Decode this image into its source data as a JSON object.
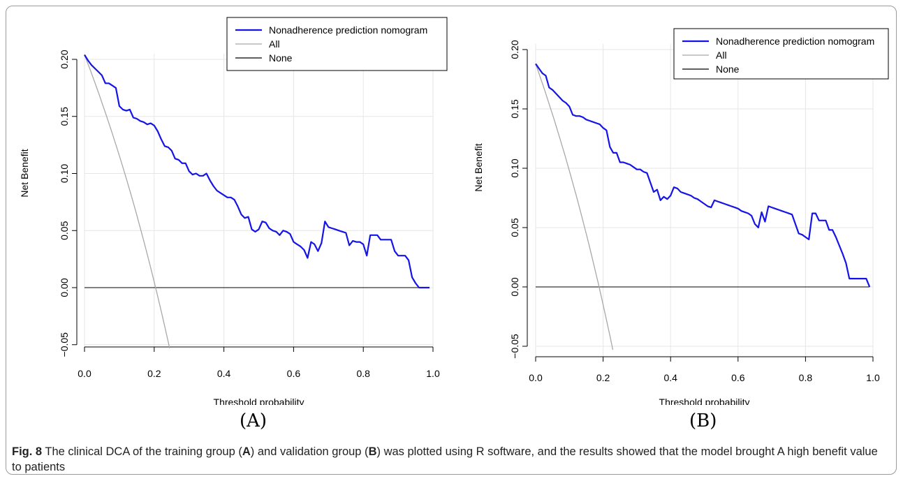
{
  "panel_labels": [
    "(A)",
    "(B)"
  ],
  "caption": {
    "label": "Fig. 8",
    "parts": [
      {
        "t": " The clinical DCA of the training group (",
        "b": false
      },
      {
        "t": "A",
        "b": true
      },
      {
        "t": ") and validation group (",
        "b": false
      },
      {
        "t": "B",
        "b": true
      },
      {
        "t": ") was plotted using R software, and the results showed that the model brought A high benefit value to patients",
        "b": false
      }
    ]
  },
  "colors": {
    "model": "#1414e6",
    "all": "#a8a8a8",
    "none": "#000000",
    "grid": "#e6e6e6"
  },
  "chart_data": [
    {
      "type": "line",
      "xlabel": "Threshold probability",
      "ylabel": "Net Benefit",
      "xlim": [
        0,
        1
      ],
      "ylim": [
        -0.05,
        0.2
      ],
      "xticks": [
        "0.0",
        "0.2",
        "0.4",
        "0.6",
        "0.8",
        "1.0"
      ],
      "yticks": [
        "−0.05",
        "0.00",
        "0.05",
        "0.10",
        "0.15",
        "0.20"
      ],
      "grid": true,
      "legend_position": "top-right",
      "prevalence": 0.204,
      "series": [
        {
          "name": "Nonadherence prediction nomogram",
          "color": "#1414e6",
          "x": [
            0.0,
            0.01,
            0.02,
            0.03,
            0.04,
            0.05,
            0.06,
            0.07,
            0.08,
            0.09,
            0.1,
            0.11,
            0.12,
            0.13,
            0.14,
            0.15,
            0.16,
            0.17,
            0.18,
            0.19,
            0.2,
            0.21,
            0.22,
            0.23,
            0.24,
            0.25,
            0.26,
            0.27,
            0.28,
            0.29,
            0.3,
            0.31,
            0.32,
            0.33,
            0.34,
            0.35,
            0.36,
            0.37,
            0.38,
            0.39,
            0.4,
            0.41,
            0.42,
            0.43,
            0.44,
            0.45,
            0.46,
            0.47,
            0.48,
            0.49,
            0.5,
            0.51,
            0.52,
            0.53,
            0.54,
            0.55,
            0.56,
            0.57,
            0.58,
            0.59,
            0.6,
            0.61,
            0.62,
            0.63,
            0.64,
            0.65,
            0.66,
            0.67,
            0.68,
            0.69,
            0.7,
            0.71,
            0.72,
            0.73,
            0.74,
            0.75,
            0.76,
            0.77,
            0.78,
            0.79,
            0.8,
            0.81,
            0.82,
            0.83,
            0.84,
            0.85,
            0.86,
            0.87,
            0.88,
            0.89,
            0.9,
            0.91,
            0.92,
            0.93,
            0.94,
            0.95,
            0.96,
            0.97,
            0.98,
            0.99
          ],
          "y": [
            0.204,
            0.199,
            0.195,
            0.192,
            0.189,
            0.186,
            0.179,
            0.179,
            0.177,
            0.175,
            0.159,
            0.156,
            0.155,
            0.156,
            0.149,
            0.148,
            0.146,
            0.145,
            0.143,
            0.144,
            0.142,
            0.137,
            0.13,
            0.124,
            0.123,
            0.12,
            0.113,
            0.112,
            0.109,
            0.109,
            0.102,
            0.099,
            0.1,
            0.098,
            0.098,
            0.1,
            0.094,
            0.089,
            0.085,
            0.083,
            0.081,
            0.079,
            0.079,
            0.077,
            0.071,
            0.064,
            0.061,
            0.062,
            0.051,
            0.049,
            0.051,
            0.058,
            0.057,
            0.052,
            0.05,
            0.049,
            0.046,
            0.05,
            0.049,
            0.047,
            0.04,
            0.038,
            0.036,
            0.033,
            0.026,
            0.04,
            0.038,
            0.032,
            0.039,
            0.058,
            0.053,
            0.052,
            0.051,
            0.05,
            0.049,
            0.048,
            0.037,
            0.041,
            0.04,
            0.04,
            0.038,
            0.028,
            0.046,
            0.046,
            0.046,
            0.042,
            0.042,
            0.042,
            0.042,
            0.032,
            0.028,
            0.028,
            0.028,
            0.024,
            0.009,
            0.004,
            0.0,
            0.0,
            0.0,
            0.0
          ]
        },
        {
          "name": "All",
          "color": "#a8a8a8",
          "x": [],
          "y": []
        },
        {
          "name": "None",
          "color": "#000000",
          "x": [
            0,
            0.99
          ],
          "y": [
            0,
            0
          ]
        }
      ]
    },
    {
      "type": "line",
      "xlabel": "Threshold probability",
      "ylabel": "Net Benefit",
      "xlim": [
        0,
        1
      ],
      "ylim": [
        -0.05,
        0.2
      ],
      "xticks": [
        "0.0",
        "0.2",
        "0.4",
        "0.6",
        "0.8",
        "1.0"
      ],
      "yticks": [
        "−0.05",
        "0.00",
        "0.05",
        "0.10",
        "0.15",
        "0.20"
      ],
      "grid": true,
      "legend_position": "top-right",
      "prevalence": 0.188,
      "series": [
        {
          "name": "Nonadherence prediction nomogram",
          "color": "#1414e6",
          "x": [
            0.0,
            0.01,
            0.02,
            0.03,
            0.04,
            0.05,
            0.06,
            0.07,
            0.08,
            0.09,
            0.1,
            0.11,
            0.12,
            0.13,
            0.14,
            0.15,
            0.16,
            0.17,
            0.18,
            0.19,
            0.2,
            0.21,
            0.22,
            0.23,
            0.24,
            0.25,
            0.26,
            0.27,
            0.28,
            0.29,
            0.3,
            0.31,
            0.32,
            0.33,
            0.34,
            0.35,
            0.36,
            0.37,
            0.38,
            0.39,
            0.4,
            0.41,
            0.42,
            0.43,
            0.44,
            0.45,
            0.46,
            0.47,
            0.48,
            0.49,
            0.5,
            0.51,
            0.52,
            0.53,
            0.54,
            0.55,
            0.56,
            0.57,
            0.58,
            0.59,
            0.6,
            0.61,
            0.62,
            0.63,
            0.64,
            0.65,
            0.66,
            0.67,
            0.68,
            0.69,
            0.7,
            0.71,
            0.72,
            0.73,
            0.74,
            0.75,
            0.76,
            0.77,
            0.78,
            0.79,
            0.8,
            0.81,
            0.82,
            0.83,
            0.84,
            0.85,
            0.86,
            0.87,
            0.88,
            0.89,
            0.9,
            0.91,
            0.92,
            0.93,
            0.94,
            0.95,
            0.96,
            0.97,
            0.98,
            0.99
          ],
          "y": [
            0.188,
            0.184,
            0.18,
            0.178,
            0.168,
            0.166,
            0.163,
            0.16,
            0.157,
            0.155,
            0.152,
            0.145,
            0.144,
            0.144,
            0.143,
            0.141,
            0.14,
            0.139,
            0.138,
            0.137,
            0.134,
            0.132,
            0.118,
            0.113,
            0.113,
            0.105,
            0.105,
            0.104,
            0.103,
            0.101,
            0.099,
            0.099,
            0.097,
            0.096,
            0.088,
            0.08,
            0.082,
            0.073,
            0.076,
            0.074,
            0.077,
            0.084,
            0.083,
            0.08,
            0.079,
            0.078,
            0.077,
            0.075,
            0.074,
            0.072,
            0.07,
            0.068,
            0.067,
            0.073,
            0.072,
            0.071,
            0.07,
            0.069,
            0.068,
            0.067,
            0.066,
            0.064,
            0.063,
            0.062,
            0.06,
            0.053,
            0.05,
            0.063,
            0.055,
            0.068,
            0.067,
            0.066,
            0.065,
            0.064,
            0.063,
            0.062,
            0.061,
            0.053,
            0.045,
            0.044,
            0.042,
            0.04,
            0.062,
            0.062,
            0.056,
            0.056,
            0.056,
            0.048,
            0.048,
            0.042,
            0.035,
            0.028,
            0.02,
            0.007,
            0.007,
            0.007,
            0.007,
            0.007,
            0.007,
            0.0
          ]
        },
        {
          "name": "All",
          "color": "#a8a8a8",
          "x": [],
          "y": []
        },
        {
          "name": "None",
          "color": "#000000",
          "x": [
            0,
            0.99
          ],
          "y": [
            0,
            0
          ]
        }
      ]
    }
  ]
}
